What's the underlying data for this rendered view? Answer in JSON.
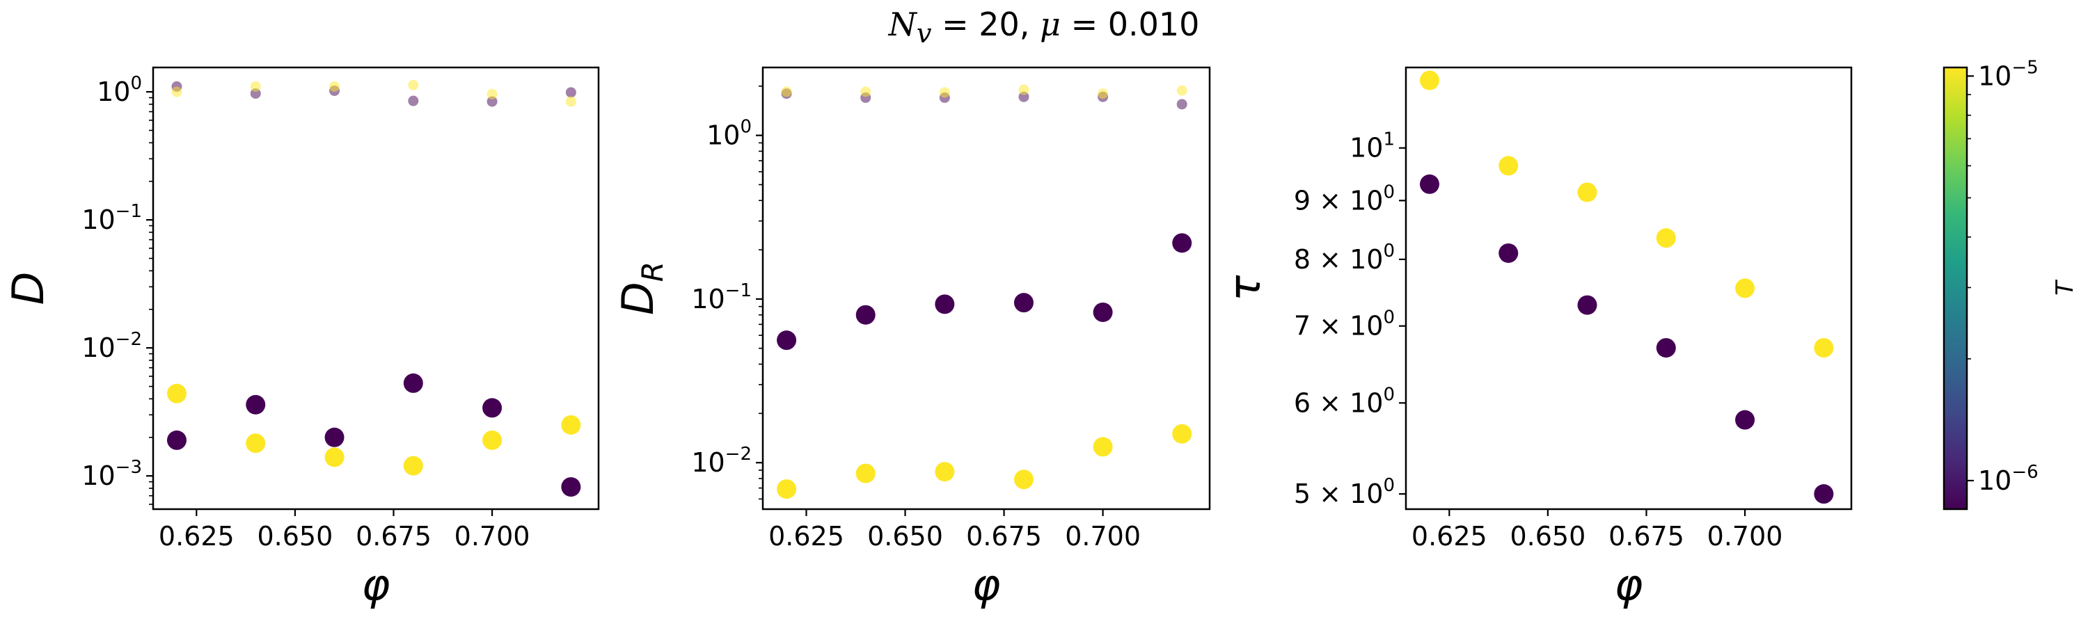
{
  "figure": {
    "title_parts": [
      "N",
      "v",
      " = 20, ",
      "μ",
      " = 0.010"
    ]
  },
  "chart_data": [
    {
      "type": "scatter",
      "xlabel": "φ",
      "ylabel": "D",
      "yscale": "log",
      "xlim": [
        0.614,
        0.727
      ],
      "ylim": [
        0.00055,
        1.55
      ],
      "xticks": [
        0.625,
        0.65,
        0.675,
        0.7
      ],
      "xtick_labels": [
        "0.625",
        "0.650",
        "0.675",
        "0.700"
      ],
      "yticks": [
        0.001,
        0.01,
        0.1,
        1
      ],
      "ytick_labels": [
        [
          "10",
          "−3"
        ],
        [
          "10",
          "−2"
        ],
        [
          "10",
          "−1"
        ],
        [
          "10",
          "0"
        ]
      ],
      "grid": false,
      "series": [
        {
          "color_T": "low",
          "marker": "large",
          "x": [
            0.62,
            0.64,
            0.66,
            0.68,
            0.7,
            0.72
          ],
          "y": [
            0.0019,
            0.0036,
            0.002,
            0.0053,
            0.0034,
            0.00082
          ]
        },
        {
          "color_T": "high",
          "marker": "large",
          "x": [
            0.62,
            0.64,
            0.66,
            0.68,
            0.7,
            0.72
          ],
          "y": [
            0.0044,
            0.0018,
            0.0014,
            0.0012,
            0.0019,
            0.0025
          ]
        },
        {
          "color_T": "low",
          "marker": "small",
          "x": [
            0.62,
            0.64,
            0.66,
            0.68,
            0.7,
            0.72
          ],
          "y": [
            1.1,
            0.97,
            1.02,
            0.85,
            0.84,
            0.99
          ]
        },
        {
          "color_T": "high",
          "marker": "small",
          "x": [
            0.62,
            0.64,
            0.66,
            0.68,
            0.7,
            0.72
          ],
          "y": [
            1.0,
            1.1,
            1.1,
            1.13,
            0.96,
            0.84
          ]
        }
      ]
    },
    {
      "type": "scatter",
      "xlabel": "φ",
      "ylabel": "D_R",
      "yscale": "log",
      "xlim": [
        0.614,
        0.727
      ],
      "ylim": [
        0.0052,
        2.6
      ],
      "xticks": [
        0.625,
        0.65,
        0.675,
        0.7
      ],
      "xtick_labels": [
        "0.625",
        "0.650",
        "0.675",
        "0.700"
      ],
      "yticks": [
        0.01,
        0.1,
        1
      ],
      "ytick_labels": [
        [
          "10",
          "−2"
        ],
        [
          "10",
          "−1"
        ],
        [
          "10",
          "0"
        ]
      ],
      "grid": false,
      "series": [
        {
          "color_T": "low",
          "marker": "large",
          "x": [
            0.62,
            0.64,
            0.66,
            0.68,
            0.7,
            0.72
          ],
          "y": [
            0.056,
            0.08,
            0.093,
            0.095,
            0.083,
            0.22
          ]
        },
        {
          "color_T": "high",
          "marker": "large",
          "x": [
            0.62,
            0.64,
            0.66,
            0.68,
            0.7,
            0.72
          ],
          "y": [
            0.0069,
            0.0086,
            0.0088,
            0.0079,
            0.0125,
            0.015
          ]
        },
        {
          "color_T": "low",
          "marker": "small",
          "x": [
            0.62,
            0.64,
            0.66,
            0.68,
            0.7,
            0.72
          ],
          "y": [
            1.8,
            1.7,
            1.7,
            1.72,
            1.72,
            1.55
          ]
        },
        {
          "color_T": "high",
          "marker": "small",
          "x": [
            0.62,
            0.64,
            0.66,
            0.68,
            0.7,
            0.72
          ],
          "y": [
            1.85,
            1.85,
            1.83,
            1.9,
            1.8,
            1.88
          ]
        }
      ]
    },
    {
      "type": "scatter",
      "xlabel": "φ",
      "ylabel": "τ",
      "yscale": "log",
      "xlim": [
        0.614,
        0.727
      ],
      "ylim": [
        4.85,
        11.75
      ],
      "xticks": [
        0.625,
        0.65,
        0.675,
        0.7
      ],
      "xtick_labels": [
        "0.625",
        "0.650",
        "0.675",
        "0.700"
      ],
      "yticks": [
        5,
        6,
        7,
        8,
        9,
        10
      ],
      "ytick_labels": [
        [
          "5 × 10",
          "0"
        ],
        [
          "6 × 10",
          "0"
        ],
        [
          "7 × 10",
          "0"
        ],
        [
          "8 × 10",
          "0"
        ],
        [
          "9 × 10",
          "0"
        ],
        [
          "10",
          "1"
        ]
      ],
      "grid": false,
      "series": [
        {
          "color_T": "low",
          "marker": "large",
          "x": [
            0.62,
            0.64,
            0.66,
            0.68,
            0.7,
            0.72
          ],
          "y": [
            9.3,
            8.1,
            7.3,
            6.7,
            5.8,
            5.0
          ]
        },
        {
          "color_T": "high",
          "marker": "large",
          "x": [
            0.62,
            0.64,
            0.66,
            0.68,
            0.7,
            0.72
          ],
          "y": [
            11.45,
            9.65,
            9.15,
            8.35,
            7.55,
            6.7
          ]
        }
      ]
    }
  ],
  "colorbar": {
    "label": "T",
    "scale": "log",
    "range": [
      8.5e-07,
      1.05e-05
    ],
    "tick_labels": [
      [
        "10",
        "−5"
      ],
      [
        "10",
        "−6"
      ]
    ],
    "colors": {
      "low": "#440154",
      "high": "#fde725",
      "gradient": [
        "#440154",
        "#482878",
        "#3e4a89",
        "#31688e",
        "#26828e",
        "#1f9e89",
        "#35b779",
        "#6ece58",
        "#b5de2b",
        "#fde725"
      ]
    }
  }
}
